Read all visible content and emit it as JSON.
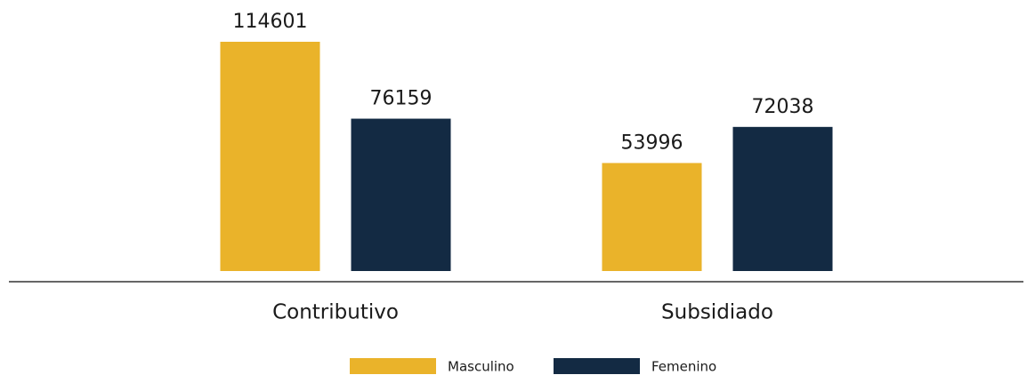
{
  "chart_data": {
    "type": "bar",
    "categories": [
      "Contributivo",
      "Subsidiado"
    ],
    "series": [
      {
        "name": "Masculino",
        "color": "#eab32a",
        "values": [
          114601,
          53996
        ]
      },
      {
        "name": "Femenino",
        "color": "#132a43",
        "values": [
          76159,
          72038
        ]
      }
    ],
    "legend": "bottom"
  }
}
